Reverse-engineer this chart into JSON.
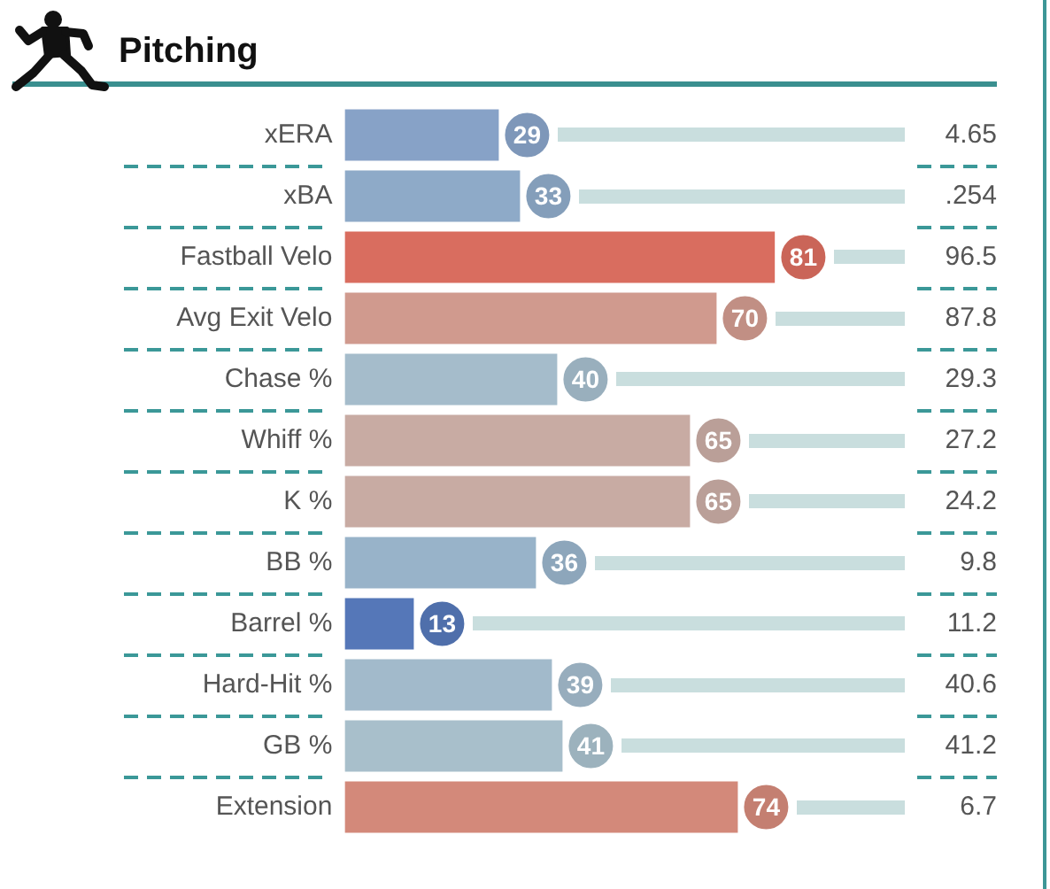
{
  "chart_data": {
    "type": "bar",
    "orientation": "horizontal",
    "title": "Pitching",
    "categories": [
      "xERA",
      "xBA",
      "Fastball Velo",
      "Avg Exit Velo",
      "Chase %",
      "Whiff %",
      "K %",
      "BB %",
      "Barrel %",
      "Hard-Hit %",
      "GB %",
      "Extension"
    ],
    "y2_categories": [
      "4.65",
      ".254",
      "96.5",
      "87.8",
      "29.3",
      "27.2",
      "24.2",
      "9.8",
      "11.2",
      "40.6",
      "41.2",
      "6.7"
    ],
    "values": [
      29,
      33,
      81,
      70,
      40,
      65,
      65,
      36,
      13,
      39,
      41,
      74
    ],
    "colors": [
      "#87a2c7",
      "#8eaac8",
      "#d96d5f",
      "#d09a8e",
      "#a5bccb",
      "#c8aba3",
      "#c8aba3",
      "#98b3c9",
      "#5577b8",
      "#a2bacb",
      "#a8bfcb",
      "#d3897a"
    ],
    "data_labels": true,
    "tick_labels": "y"
  }
}
